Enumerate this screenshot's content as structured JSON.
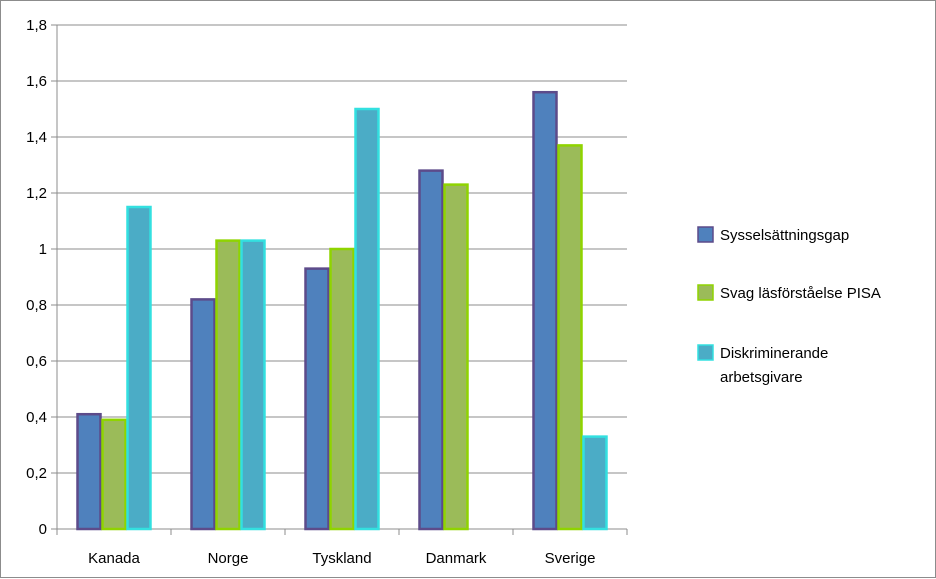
{
  "chart_data": {
    "type": "bar",
    "title": "",
    "xlabel": "",
    "ylabel": "",
    "categories": [
      "Kanada",
      "Norge",
      "Tyskland",
      "Danmark",
      "Sverige"
    ],
    "series": [
      {
        "name": "Sysselsättningsgap",
        "color": "#4f81bd",
        "border": "#5d4b8a",
        "values": [
          0.41,
          0.82,
          0.93,
          1.28,
          1.56
        ]
      },
      {
        "name": "Svag läsförståelse PISA",
        "color": "#9bbb59",
        "border": "#8fd400",
        "values": [
          0.39,
          1.03,
          1.0,
          1.23,
          1.37
        ]
      },
      {
        "name": "Diskriminerande arbetsgivare",
        "color": "#4bacc6",
        "border": "#33e0e0",
        "values": [
          1.15,
          1.03,
          1.5,
          null,
          0.33
        ]
      }
    ],
    "ylim": [
      0,
      1.8
    ],
    "yticks": [
      0,
      0.2,
      0.4,
      0.6,
      0.8,
      1,
      1.2,
      1.4,
      1.6,
      1.8
    ],
    "ytick_labels": [
      "0",
      "0,2",
      "0,4",
      "0,6",
      "0,8",
      "1",
      "1,2",
      "1,4",
      "1,6",
      "1,8"
    ],
    "grid": true,
    "legend_position": "right"
  }
}
